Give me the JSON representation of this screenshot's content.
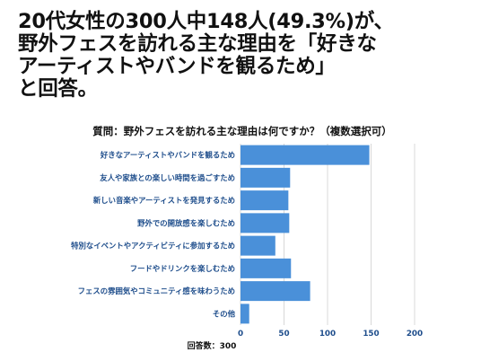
{
  "headline": {
    "lines": [
      "20代女性の300人中148人(49.3%)が、",
      "野外フェスを訪れる主な理由を「好きな",
      "アーティストやバンドを観るため」",
      "と回答。"
    ]
  },
  "colors": {
    "bar": "#4a90d9",
    "axis_text": "#1f4e8c",
    "grid": "#cfcfcf"
  },
  "chart_data": {
    "type": "bar",
    "orientation": "horizontal",
    "title": "質問：野外フェスを訪れる主な理由は何ですか？（複数選択可）",
    "categories": [
      "好きなアーティストやバンドを観るため",
      "友人や家族との楽しい時間を過ごすため",
      "新しい音楽やアーティストを発見するため",
      "野外での開放感を楽しむため",
      "特別なイベントやアクティビティに参加するため",
      "フードやドリンクを楽しむため",
      "フェスの雰囲気やコミュニティ感を味わうため",
      "その他"
    ],
    "values": [
      148,
      57,
      55,
      56,
      40,
      58,
      80,
      10
    ],
    "xlim": [
      0,
      200
    ],
    "xticks": [
      0,
      50,
      100,
      150,
      200
    ],
    "grid": true,
    "footer": "回答数：300"
  }
}
